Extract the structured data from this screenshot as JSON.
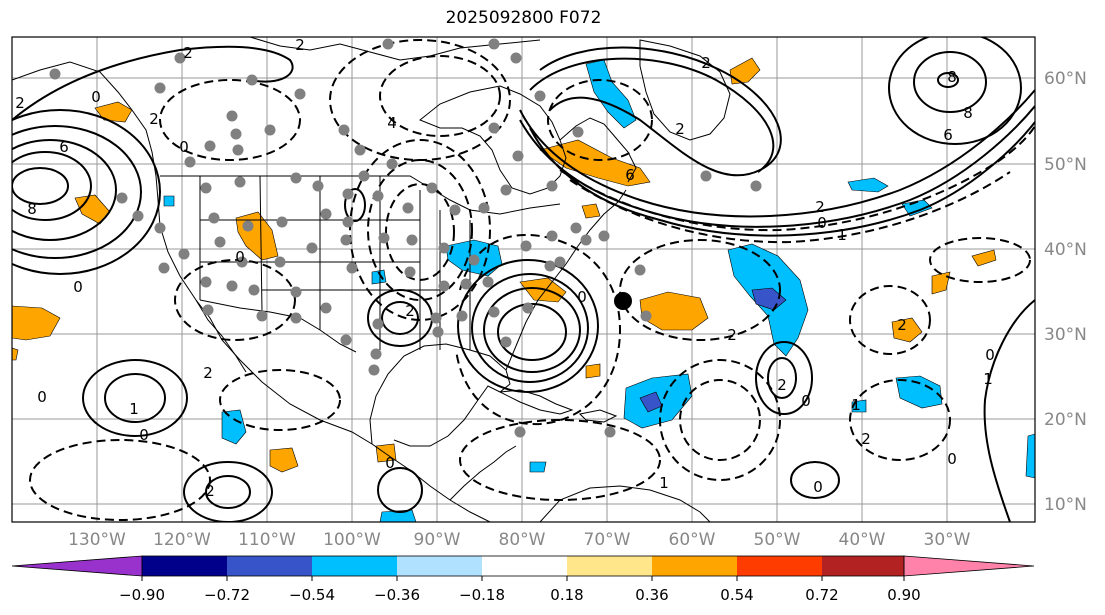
{
  "title": "2025092800 F072",
  "longitude_labels": [
    "130°W",
    "120°W",
    "110°W",
    "100°W",
    "90°W",
    "80°W",
    "70°W",
    "60°W",
    "50°W",
    "40°W",
    "30°W"
  ],
  "latitude_labels": [
    "60°N",
    "50°N",
    "40°N",
    "30°N",
    "20°N",
    "10°N"
  ],
  "contour_labels": [
    "2",
    "0",
    "2",
    "6",
    "8",
    "2",
    "0",
    "0",
    "2",
    "4",
    "6",
    "8",
    "0",
    "2",
    "6",
    "8",
    "2",
    "2",
    "0",
    "2",
    "1",
    "0",
    "0",
    "2",
    "2",
    "0",
    "1",
    "2",
    "0",
    "2",
    "0",
    "1",
    "0",
    "0",
    "0",
    "1",
    "2",
    "1",
    "2"
  ],
  "colorbar": {
    "ticks": [
      "−0.90",
      "−0.72",
      "−0.54",
      "−0.36",
      "−0.18",
      "0.18",
      "0.36",
      "0.54",
      "0.72",
      "0.90"
    ],
    "colors": [
      "#9932cc",
      "#00008b",
      "#3755c8",
      "#00bfff",
      "#b0e2ff",
      "#ffffff",
      "#ffe68a",
      "#ffa500",
      "#ff3c00",
      "#b22222",
      "#ff82ab"
    ]
  },
  "colors": {
    "grid": "#999999",
    "label_gray": "#888888",
    "station": "#808080"
  }
}
